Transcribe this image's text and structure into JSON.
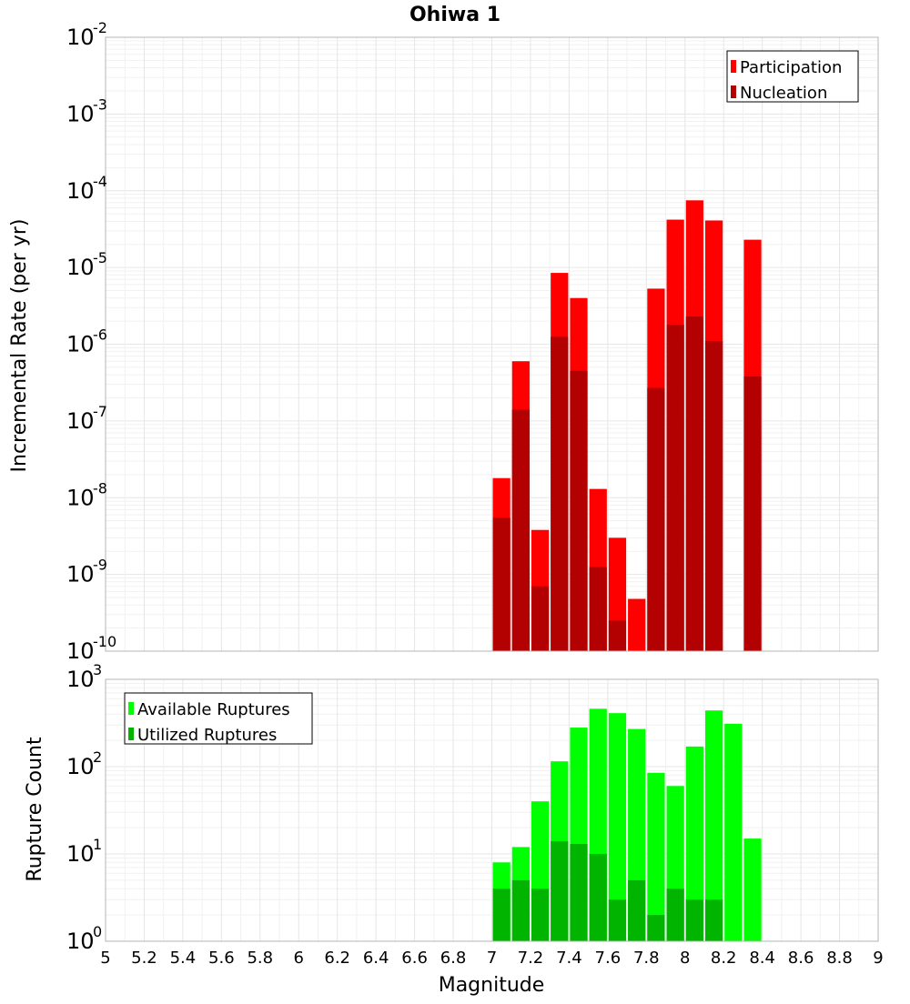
{
  "chart_data": [
    {
      "type": "bar",
      "title": "Ohiwa 1",
      "ylabel": "Incremental Rate (per yr)",
      "xlabel": "",
      "yscale": "log",
      "ylim_exponents": [
        -10,
        -2
      ],
      "xlim": [
        5,
        9
      ],
      "bin_width": 0.1,
      "grid": true,
      "legend_position": "top-right",
      "series": [
        {
          "name": "Participation",
          "color": "#ff0000",
          "x": [
            7.05,
            7.15,
            7.25,
            7.35,
            7.45,
            7.55,
            7.65,
            7.75,
            7.85,
            7.95,
            8.05,
            8.15,
            8.35
          ],
          "values": [
            1.8e-08,
            6e-07,
            3.8e-09,
            8.5e-06,
            4e-06,
            1.3e-08,
            3e-09,
            4.8e-10,
            5.3e-06,
            4.2e-05,
            7.5e-05,
            4.1e-05,
            2.3e-05
          ]
        },
        {
          "name": "Nucleation",
          "color": "#b30000",
          "x": [
            7.05,
            7.15,
            7.25,
            7.35,
            7.45,
            7.55,
            7.65,
            7.75,
            7.85,
            7.95,
            8.05,
            8.15,
            8.35
          ],
          "values": [
            5.5e-09,
            1.4e-07,
            7e-10,
            1.25e-06,
            4.5e-07,
            1.25e-09,
            2.5e-10,
            null,
            2.7e-07,
            1.8e-06,
            2.3e-06,
            1.1e-06,
            3.8e-07
          ]
        }
      ]
    },
    {
      "type": "bar",
      "title": "",
      "ylabel": "Rupture Count",
      "xlabel": "Magnitude",
      "yscale": "log",
      "ylim_exponents": [
        0,
        3
      ],
      "xlim": [
        5,
        9
      ],
      "bin_width": 0.1,
      "grid": true,
      "legend_position": "top-left",
      "series": [
        {
          "name": "Available Ruptures",
          "color": "#00ff00",
          "x": [
            6.55,
            6.95,
            7.05,
            7.15,
            7.25,
            7.35,
            7.45,
            7.55,
            7.65,
            7.75,
            7.85,
            7.95,
            8.05,
            8.15,
            8.25,
            8.35
          ],
          "values": [
            1,
            1,
            8,
            12,
            40,
            115,
            280,
            460,
            410,
            270,
            85,
            60,
            170,
            440,
            310,
            15
          ]
        },
        {
          "name": "Utilized Ruptures",
          "color": "#00b400",
          "x": [
            7.05,
            7.15,
            7.25,
            7.35,
            7.45,
            7.55,
            7.65,
            7.75,
            7.85,
            7.95,
            8.05,
            8.15,
            8.35
          ],
          "values": [
            4,
            5,
            4,
            14,
            13,
            10,
            3,
            5,
            2,
            4,
            3,
            3,
            1
          ]
        }
      ],
      "x_ticks": [
        "5",
        "5.2",
        "5.4",
        "5.6",
        "5.8",
        "6",
        "6.2",
        "6.4",
        "6.6",
        "6.8",
        "7",
        "7.2",
        "7.4",
        "7.6",
        "7.8",
        "8",
        "8.2",
        "8.4",
        "8.6",
        "8.8",
        "9"
      ]
    }
  ]
}
